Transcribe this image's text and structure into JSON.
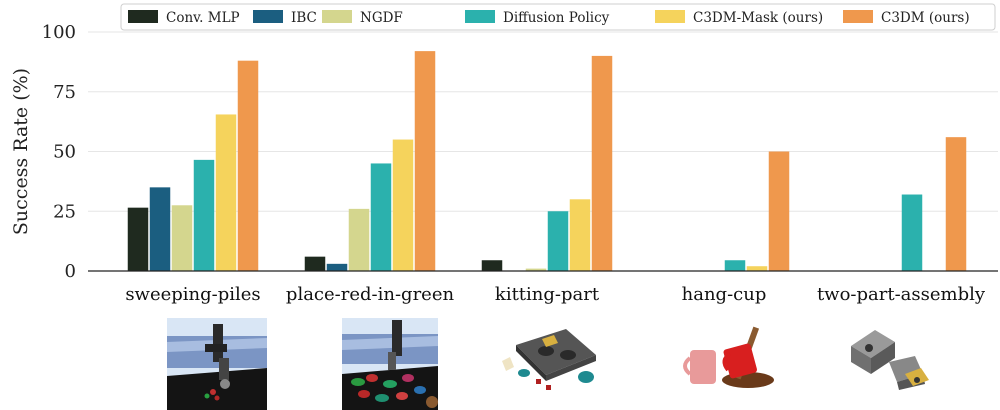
{
  "chart_data": {
    "type": "bar",
    "title": "",
    "xlabel": "",
    "ylabel": "Success Rate (%)",
    "ylim": [
      0,
      100
    ],
    "yticks": [
      0,
      25,
      50,
      75,
      100
    ],
    "grid": true,
    "legend_position": "top",
    "categories": [
      "sweeping-piles",
      "place-red-in-green",
      "kitting-part",
      "hang-cup",
      "two-part-assembly"
    ],
    "series": [
      {
        "name": "Conv. MLP",
        "color": "#1f2a1f",
        "values": [
          26.5,
          6,
          4.5,
          0,
          0
        ]
      },
      {
        "name": "IBC",
        "color": "#1b5e80",
        "values": [
          35,
          3,
          0,
          0,
          0
        ]
      },
      {
        "name": "NGDF",
        "color": "#d4d68e",
        "values": [
          27.5,
          26,
          1,
          0,
          0
        ]
      },
      {
        "name": "Diffusion Policy",
        "color": "#2bb1ad",
        "values": [
          46.5,
          45,
          25,
          4.5,
          32
        ]
      },
      {
        "name": "C3DM-Mask (ours)",
        "color": "#f5d35c",
        "values": [
          65.5,
          55,
          30,
          2,
          0
        ]
      },
      {
        "name": "C3DM (ours)",
        "color": "#ef984d",
        "values": [
          88,
          92,
          90,
          50,
          56
        ]
      }
    ],
    "thumbnails": [
      {
        "category": "sweeping-piles",
        "icon": "robot-sweeping-scene-icon"
      },
      {
        "category": "place-red-in-green",
        "icon": "robot-bowls-scene-icon"
      },
      {
        "category": "kitting-part",
        "icon": "kitting-parts-icon"
      },
      {
        "category": "hang-cup",
        "icon": "hang-cup-icon"
      },
      {
        "category": "two-part-assembly",
        "icon": "assembly-parts-icon"
      }
    ]
  }
}
